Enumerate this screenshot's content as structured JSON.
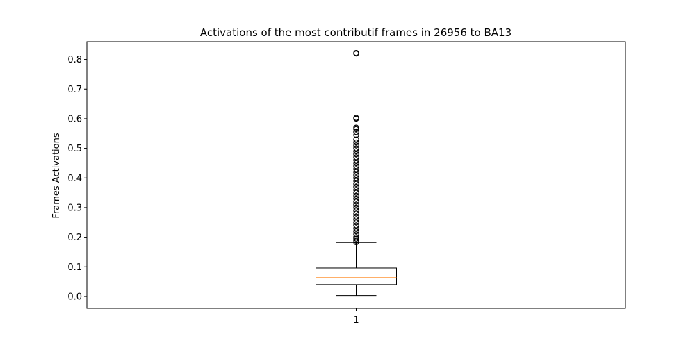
{
  "chart_data": {
    "type": "boxplot",
    "title": "Activations of the most contributif frames in 26956 to BA13",
    "xlabel": "",
    "ylabel": "Frames Activations",
    "categories": [
      "1"
    ],
    "ylim": [
      -0.04,
      0.86
    ],
    "yticks": [
      0.0,
      0.1,
      0.2,
      0.3,
      0.4,
      0.5,
      0.6,
      0.7,
      0.8
    ],
    "ytick_labels": [
      "0.0",
      "0.1",
      "0.2",
      "0.3",
      "0.4",
      "0.5",
      "0.6",
      "0.7",
      "0.8"
    ],
    "boxes": [
      {
        "label": "1",
        "whisker_low": 0.003,
        "q1": 0.04,
        "median": 0.063,
        "q3": 0.096,
        "whisker_high": 0.182,
        "outliers": [
          0.183,
          0.188,
          0.195,
          0.2,
          0.21,
          0.22,
          0.23,
          0.24,
          0.25,
          0.26,
          0.27,
          0.28,
          0.29,
          0.3,
          0.31,
          0.32,
          0.33,
          0.34,
          0.35,
          0.36,
          0.37,
          0.38,
          0.39,
          0.4,
          0.41,
          0.42,
          0.43,
          0.44,
          0.45,
          0.46,
          0.47,
          0.48,
          0.49,
          0.5,
          0.51,
          0.52,
          0.53,
          0.545,
          0.555,
          0.565,
          0.57,
          0.6,
          0.603,
          0.82,
          0.822
        ]
      }
    ],
    "grid": false,
    "colors": {
      "median": "#ff7f0e",
      "box": "#000000"
    }
  }
}
